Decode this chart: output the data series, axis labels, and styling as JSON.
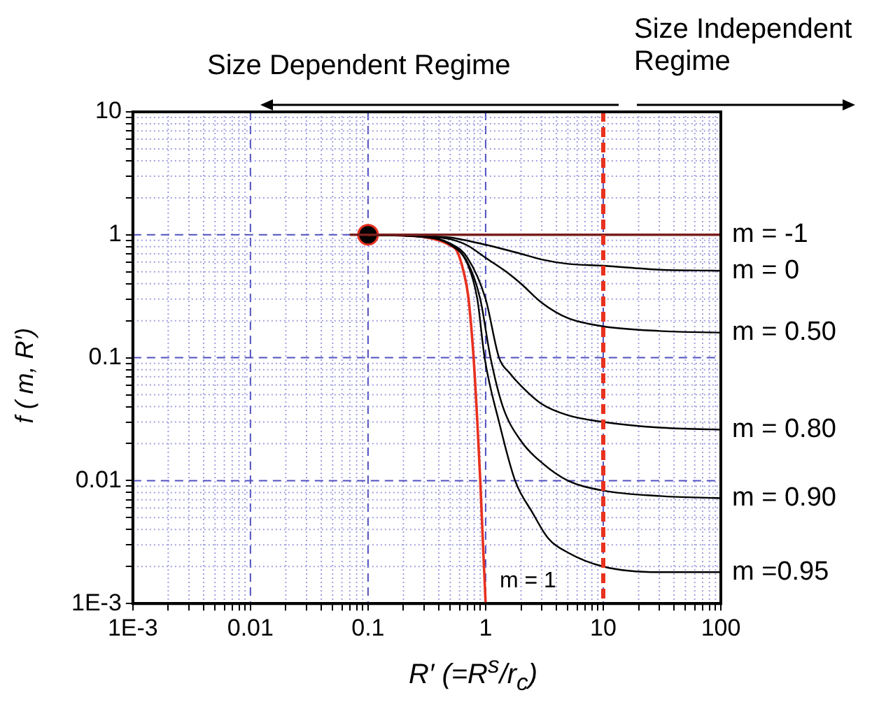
{
  "chart_data": {
    "type": "line",
    "xlabel": "R′ (=R$^{s}$/r$_{c}$)",
    "ylabel": "f ( m, R′)",
    "annotations": [
      "Size Dependent Regime",
      "Size Independent Regime"
    ],
    "log": "xy",
    "grid": true,
    "legend": false,
    "xlim": [
      0.001,
      100
    ],
    "ylim": [
      0.001,
      10
    ],
    "xticks": [
      {
        "value": 0.001,
        "label": "1E-3"
      },
      {
        "value": 0.002,
        "label": null
      },
      {
        "value": 0.003,
        "label": null
      },
      {
        "value": 0.004,
        "label": null
      },
      {
        "value": 0.005,
        "label": null
      },
      {
        "value": 0.006,
        "label": null
      },
      {
        "value": 0.007,
        "label": null
      },
      {
        "value": 0.008,
        "label": null
      },
      {
        "value": 0.009,
        "label": null
      },
      0.01,
      {
        "value": 0.02,
        "label": null
      },
      {
        "value": 0.03,
        "label": null
      },
      {
        "value": 0.04,
        "label": null
      },
      {
        "value": 0.05,
        "label": null
      },
      {
        "value": 0.06,
        "label": null
      },
      {
        "value": 0.07,
        "label": null
      },
      {
        "value": 0.08,
        "label": null
      },
      {
        "value": 0.09,
        "label": null
      },
      0.1,
      {
        "value": 0.2,
        "label": null
      },
      {
        "value": 0.3,
        "label": null
      },
      {
        "value": 0.4,
        "label": null
      },
      {
        "value": 0.5,
        "label": null
      },
      {
        "value": 0.6,
        "label": null
      },
      {
        "value": 0.7,
        "label": null
      },
      {
        "value": 0.8,
        "label": null
      },
      {
        "value": 0.9,
        "label": null
      },
      1,
      {
        "value": 2,
        "label": null
      },
      {
        "value": 3,
        "label": null
      },
      {
        "value": 4,
        "label": null
      },
      {
        "value": 5,
        "label": null
      },
      {
        "value": 6,
        "label": null
      },
      {
        "value": 7,
        "label": null
      },
      {
        "value": 8,
        "label": null
      },
      {
        "value": 9,
        "label": null
      },
      10,
      {
        "value": 20,
        "label": null
      },
      {
        "value": 30,
        "label": null
      },
      {
        "value": 40,
        "label": null
      },
      {
        "value": 50,
        "label": null
      },
      {
        "value": 60,
        "label": null
      },
      {
        "value": 70,
        "label": null
      },
      {
        "value": 80,
        "label": null
      },
      {
        "value": 90,
        "label": null
      },
      100
    ],
    "yticks": [
      {
        "value": 0.001,
        "label": "1E-3"
      },
      {
        "value": 0.002,
        "label": null
      },
      {
        "value": 0.003,
        "label": null
      },
      {
        "value": 0.004,
        "label": null
      },
      {
        "value": 0.005,
        "label": null
      },
      {
        "value": 0.006,
        "label": null
      },
      {
        "value": 0.007,
        "label": null
      },
      {
        "value": 0.008,
        "label": null
      },
      {
        "value": 0.009,
        "label": null
      },
      0.01,
      {
        "value": 0.02,
        "label": null
      },
      {
        "value": 0.03,
        "label": null
      },
      {
        "value": 0.04,
        "label": null
      },
      {
        "value": 0.05,
        "label": null
      },
      {
        "value": 0.06,
        "label": null
      },
      {
        "value": 0.07,
        "label": null
      },
      {
        "value": 0.08,
        "label": null
      },
      {
        "value": 0.09,
        "label": null
      },
      0.1,
      {
        "value": 0.2,
        "label": null
      },
      {
        "value": 0.3,
        "label": null
      },
      {
        "value": 0.4,
        "label": null
      },
      {
        "value": 0.5,
        "label": null
      },
      {
        "value": 0.6,
        "label": null
      },
      {
        "value": 0.7,
        "label": null
      },
      {
        "value": 0.8,
        "label": null
      },
      {
        "value": 0.9,
        "label": null
      },
      1,
      {
        "value": 2,
        "label": null
      },
      {
        "value": 3,
        "label": null
      },
      {
        "value": 4,
        "label": null
      },
      {
        "value": 5,
        "label": null
      },
      {
        "value": 6,
        "label": null
      },
      {
        "value": 7,
        "label": null
      },
      {
        "value": 8,
        "label": null
      },
      {
        "value": 9,
        "label": null
      },
      10
    ],
    "ref_lines": [
      {
        "axis": "x",
        "value": 10,
        "color": "#e8311f",
        "line_style": "dashed"
      }
    ],
    "series": [
      {
        "name": "m = -1",
        "color": "#7a1f1f",
        "x": [
          0.07,
          100
        ],
        "values": [
          1,
          1
        ]
      },
      {
        "name": "m = 0",
        "color": "#000000",
        "x": [
          0.1,
          0.3,
          0.5,
          1,
          2,
          3,
          5,
          10,
          30,
          100
        ],
        "values": [
          1,
          0.98,
          0.95,
          0.83,
          0.7,
          0.63,
          0.58,
          0.56,
          0.52,
          0.51
        ]
      },
      {
        "name": "m = 0.50",
        "color": "#000000",
        "x": [
          0.1,
          0.3,
          0.5,
          0.7,
          1,
          1.5,
          2,
          3,
          5,
          10,
          30,
          100
        ],
        "values": [
          1,
          0.97,
          0.92,
          0.82,
          0.65,
          0.5,
          0.4,
          0.28,
          0.21,
          0.18,
          0.165,
          0.16
        ]
      },
      {
        "name": "m = 0.80",
        "color": "#000000",
        "x": [
          0.1,
          0.3,
          0.5,
          0.7,
          1,
          1.3,
          1.6,
          2,
          3,
          5,
          10,
          30,
          100
        ],
        "values": [
          1,
          0.96,
          0.85,
          0.65,
          0.3,
          0.1,
          0.075,
          0.059,
          0.042,
          0.034,
          0.03,
          0.027,
          0.026
        ]
      },
      {
        "name": "m = 0.90",
        "color": "#000000",
        "x": [
          0.1,
          0.3,
          0.5,
          0.7,
          0.9,
          1.1,
          1.4,
          2,
          3,
          5,
          10,
          30,
          100
        ],
        "values": [
          1,
          0.96,
          0.84,
          0.6,
          0.3,
          0.1,
          0.04,
          0.021,
          0.014,
          0.01,
          0.0083,
          0.0075,
          0.0072
        ]
      },
      {
        "name": "m =0.95",
        "color": "#000000",
        "x": [
          0.1,
          0.3,
          0.5,
          0.7,
          0.85,
          0.98,
          1.3,
          1.78,
          2.5,
          3.4,
          5,
          10,
          30,
          100
        ],
        "values": [
          1,
          0.96,
          0.83,
          0.58,
          0.3,
          0.1,
          0.03,
          0.01,
          0.0055,
          0.0034,
          0.0026,
          0.002,
          0.0018,
          0.0018
        ]
      },
      {
        "name": "m = 1",
        "color": "#e8311f",
        "x": [
          0.1,
          0.2,
          0.3,
          0.4,
          0.5,
          0.57,
          0.65,
          0.71,
          0.79,
          0.85,
          0.9,
          0.95,
          1
        ],
        "values": [
          1,
          0.99,
          0.96,
          0.9,
          0.82,
          0.74,
          0.5,
          0.32,
          0.1,
          0.03,
          0.01,
          0.003,
          0.001
        ]
      },
      {
        "type": "scatter",
        "color": "#000000",
        "marker": "circle",
        "x": [
          0.1
        ],
        "values": [
          1
        ]
      }
    ]
  }
}
